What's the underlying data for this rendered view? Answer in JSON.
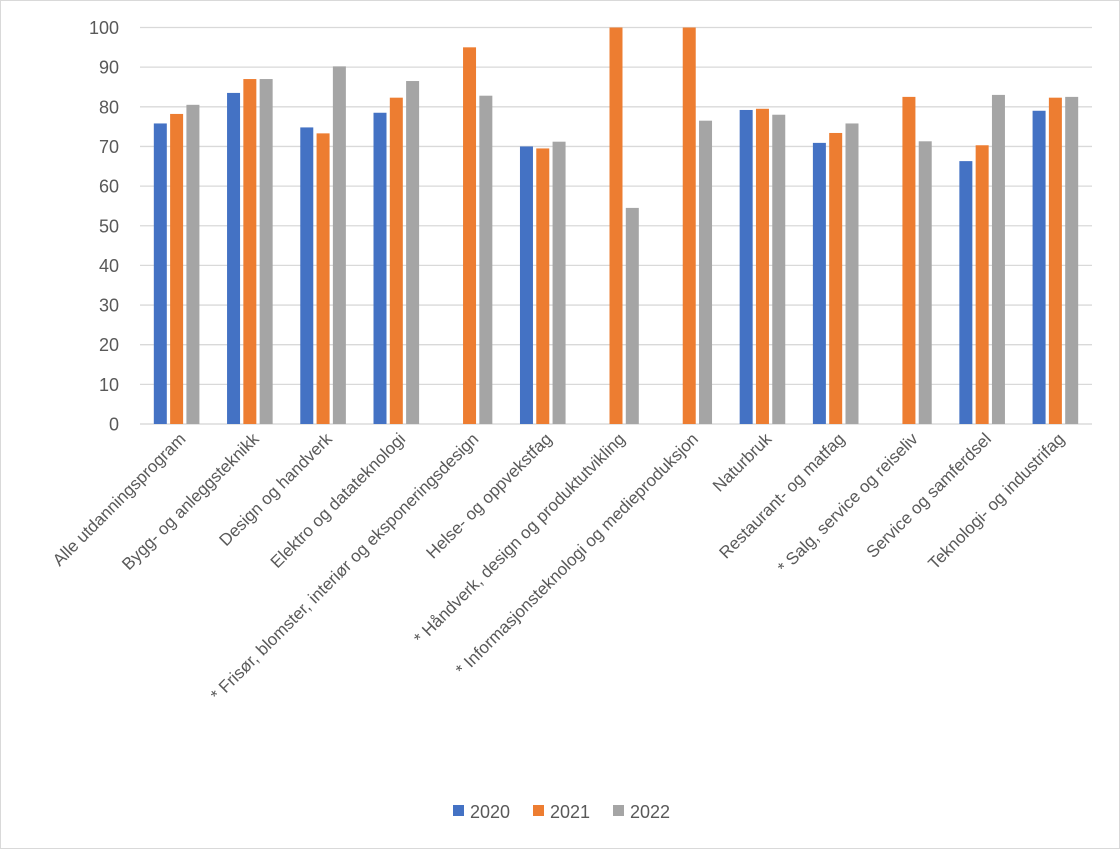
{
  "chart_data": {
    "type": "bar",
    "title": "",
    "xlabel": "",
    "ylabel": "",
    "ylim": [
      0,
      100
    ],
    "yticks": [
      "0",
      "10",
      "20",
      "30",
      "40",
      "50",
      "60",
      "70",
      "80",
      "90",
      "100"
    ],
    "grid": true,
    "legend_position": "bottom",
    "categories": [
      "Alle utdanningsprogram",
      "Bygg- og anleggsteknikk",
      "Design og handverk",
      "Elektro og datateknologi",
      "* Frisør, blomster, interiør og eksponeringsdesign",
      "Helse- og oppvekstfag",
      "* Håndverk, design og produktutvikling",
      "* Informasjonsteknologi og medieproduksjon",
      "Naturbruk",
      "Restaurant- og matfag",
      "* Salg, service og reiseliv",
      "Service og samferdsel",
      "Teknologi- og industrifag"
    ],
    "series": [
      {
        "name": "2020",
        "color": "#4472c4",
        "values": [
          75.8,
          83.5,
          74.8,
          78.5,
          null,
          70.0,
          null,
          null,
          79.2,
          70.9,
          null,
          66.3,
          79.0
        ]
      },
      {
        "name": "2021",
        "color": "#ed7d31",
        "values": [
          78.2,
          87.0,
          73.3,
          82.3,
          95.0,
          69.5,
          100.0,
          100.0,
          79.5,
          73.4,
          82.5,
          70.3,
          82.3
        ]
      },
      {
        "name": "2022",
        "color": "#a5a5a5",
        "values": [
          80.5,
          87.0,
          90.2,
          86.5,
          82.8,
          71.2,
          54.5,
          76.5,
          78.0,
          75.8,
          71.3,
          83.0,
          82.5
        ]
      }
    ]
  }
}
